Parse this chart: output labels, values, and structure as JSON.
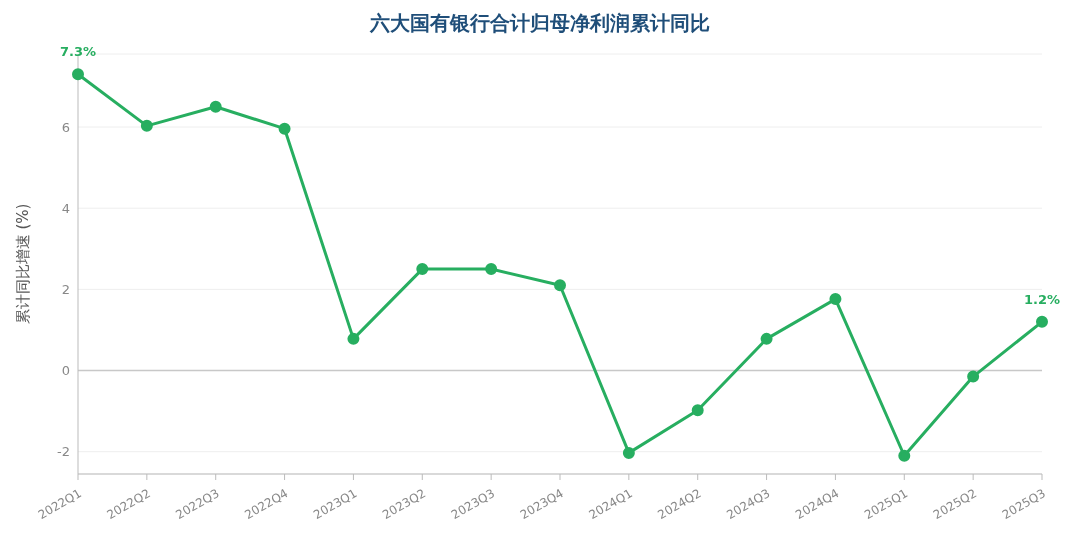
{
  "chart_data": {
    "type": "line",
    "title": "六大国有银行合计归母净利润累计同比",
    "ylabel": "累计同比增速 (%)",
    "categories": [
      "2022Q1",
      "2022Q2",
      "2022Q3",
      "2022Q4",
      "2023Q1",
      "2023Q2",
      "2023Q3",
      "2023Q4",
      "2024Q1",
      "2024Q2",
      "2024Q3",
      "2024Q4",
      "2025Q1",
      "2025Q2",
      "2025Q3"
    ],
    "series": [
      {
        "color": "#27ae60",
        "values": [
          7.3,
          6.03,
          6.5,
          5.96,
          0.78,
          2.5,
          2.5,
          2.1,
          -2.03,
          -0.98,
          0.78,
          1.76,
          -2.1,
          -0.15,
          1.2
        ],
        "value_labels": [
          "7.3%",
          null,
          null,
          null,
          null,
          null,
          null,
          null,
          null,
          null,
          null,
          null,
          null,
          null,
          "1.2%"
        ]
      }
    ],
    "ylim": [
      -2.55,
      7.8
    ],
    "yticks": [
      -2,
      0,
      2,
      4,
      6
    ],
    "grid": "y",
    "marker": "circle",
    "line_style": "solid",
    "legend": false,
    "ref_lines": [
      {
        "axis": "y",
        "value": 0,
        "color": "#c8c8c8"
      }
    ]
  }
}
